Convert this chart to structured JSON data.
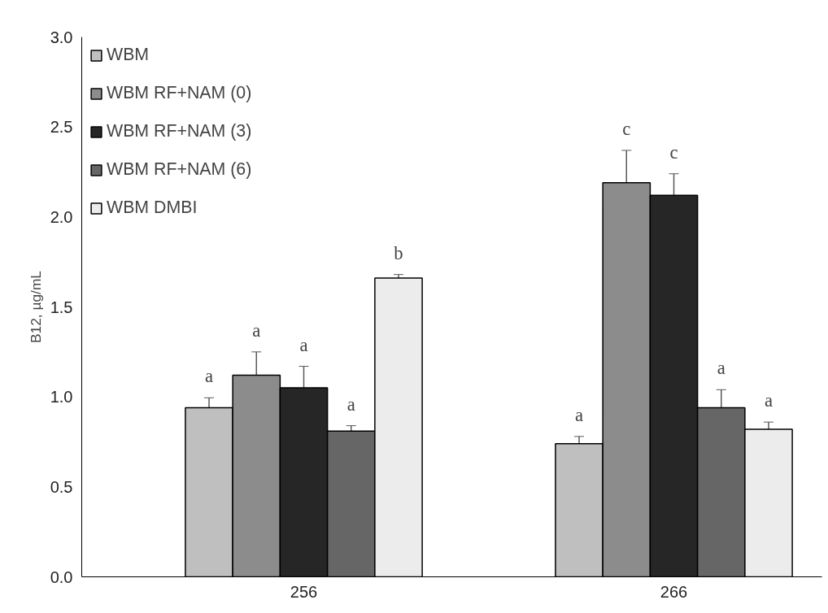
{
  "chart_data": {
    "type": "bar",
    "ylabel": "B12, µg/mL",
    "categories": [
      "256",
      "266"
    ],
    "series": [
      {
        "name": "WBM",
        "color": "#bfbfbf",
        "values": [
          0.94,
          0.74
        ],
        "errors": [
          0.055,
          0.04
        ]
      },
      {
        "name": "WBM RF+NAM (0)",
        "color": "#8c8c8c",
        "values": [
          1.12,
          2.19
        ],
        "errors": [
          0.13,
          0.18
        ]
      },
      {
        "name": "WBM RF+NAM (3)",
        "color": "#262626",
        "values": [
          1.05,
          2.12
        ],
        "errors": [
          0.12,
          0.12
        ]
      },
      {
        "name": "WBM RF+NAM (6)",
        "color": "#666666",
        "values": [
          0.81,
          0.94
        ],
        "errors": [
          0.03,
          0.1
        ]
      },
      {
        "name": "WBM DMBI",
        "color": "#ececec",
        "values": [
          1.66,
          0.82
        ],
        "errors": [
          0.02,
          0.04
        ]
      }
    ],
    "annotations": [
      "a",
      "a",
      "a",
      "a",
      "b",
      "a",
      "c",
      "c",
      "a",
      "a"
    ],
    "ylim": [
      0,
      3
    ],
    "yticks": [
      {
        "value": 0,
        "label": "0.0"
      },
      {
        "value": 0.5,
        "label": "0.5"
      },
      {
        "value": 1,
        "label": "1.0"
      },
      {
        "value": 1.5,
        "label": "1.5"
      },
      {
        "value": 2,
        "label": "2.0"
      },
      {
        "value": 2.5,
        "label": "2.5"
      },
      {
        "value": 3,
        "label": "3.0"
      }
    ],
    "legend": "top left",
    "grid": false
  }
}
